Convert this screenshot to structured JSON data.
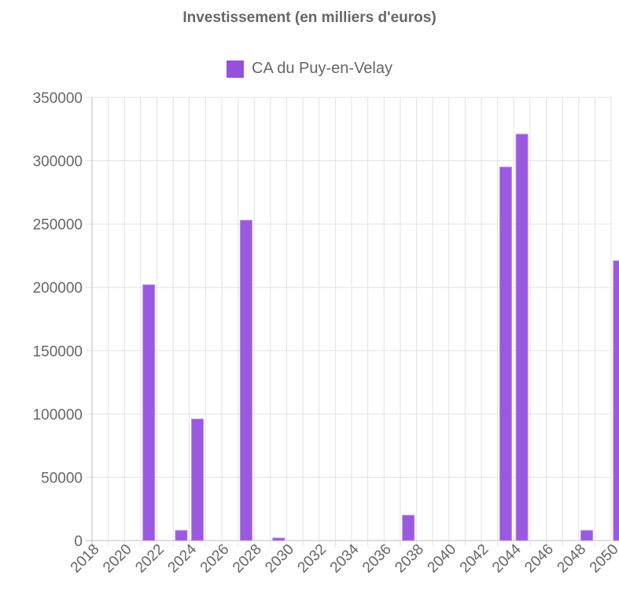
{
  "chart_data": {
    "type": "bar",
    "title": "Investissement (en milliers d'euros)",
    "xlabel": "",
    "ylabel": "",
    "ylim": [
      0,
      350000
    ],
    "y_ticks": [
      "0",
      "50000",
      "100000",
      "150000",
      "200000",
      "250000",
      "300000",
      "350000"
    ],
    "categories": [
      "2018",
      "2019",
      "2020",
      "2021",
      "2022",
      "2023",
      "2024",
      "2025",
      "2026",
      "2027",
      "2028",
      "2029",
      "2030",
      "2031",
      "2032",
      "2033",
      "2034",
      "2035",
      "2036",
      "2037",
      "2038",
      "2039",
      "2040",
      "2041",
      "2042",
      "2043",
      "2044",
      "2045",
      "2046",
      "2047",
      "2048",
      "2049",
      "2050"
    ],
    "x_tick_labels": [
      "2018",
      "2020",
      "2022",
      "2024",
      "2026",
      "2028",
      "2030",
      "2032",
      "2034",
      "2036",
      "2038",
      "2040",
      "2042",
      "2044",
      "2046",
      "2048",
      "2050"
    ],
    "legend_position": "top",
    "grid": true,
    "series": [
      {
        "name": "CA du Puy-en-Velay",
        "color": "#9550dc",
        "values": [
          0,
          0,
          0,
          202000,
          0,
          8000,
          96000,
          0,
          0,
          253000,
          0,
          2000,
          0,
          0,
          0,
          0,
          0,
          0,
          0,
          20000,
          0,
          0,
          0,
          0,
          0,
          295000,
          321000,
          0,
          0,
          0,
          8000,
          0,
          221000
        ]
      }
    ]
  }
}
